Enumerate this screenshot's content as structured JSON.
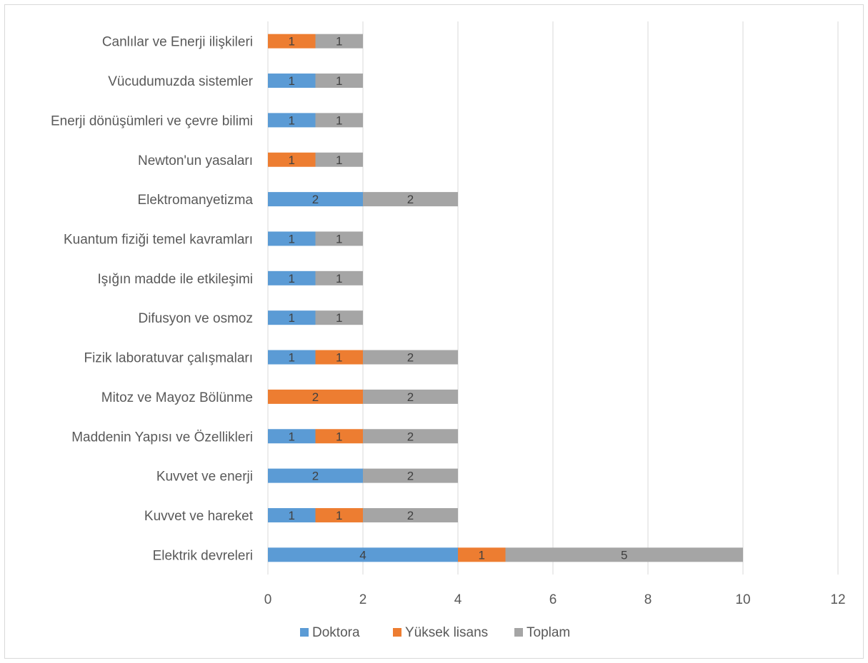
{
  "chart_data": {
    "type": "bar",
    "orientation": "horizontal",
    "stacked": true,
    "categories": [
      "Canlılar ve Enerji ilişkileri",
      "Vücudumuzda sistemler",
      "Enerji dönüşümleri ve çevre bilimi",
      "Newton'un yasaları",
      "Elektromanyetizma",
      "Kuantum fiziği temel kavramları",
      "Işığın madde ile etkileşimi",
      "Difusyon ve osmoz",
      "Fizik laboratuvar çalışmaları",
      "Mitoz ve Mayoz Bölünme",
      "Maddenin Yapısı ve Özellikleri",
      "Kuvvet ve enerji",
      "Kuvvet ve hareket",
      "Elektrik devreleri"
    ],
    "series": [
      {
        "name": "Doktora",
        "color": "#5B9BD5",
        "values": [
          0,
          1,
          1,
          0,
          2,
          1,
          1,
          1,
          1,
          0,
          1,
          2,
          1,
          4
        ]
      },
      {
        "name": "Yüksek lisans",
        "color": "#ED7D31",
        "values": [
          1,
          0,
          0,
          1,
          0,
          0,
          0,
          0,
          1,
          2,
          1,
          0,
          1,
          1
        ]
      },
      {
        "name": "Toplam",
        "color": "#A5A5A5",
        "values": [
          1,
          1,
          1,
          1,
          2,
          1,
          1,
          1,
          2,
          2,
          2,
          2,
          2,
          5
        ]
      }
    ],
    "xlim": [
      0,
      12
    ],
    "xticks": [
      0,
      2,
      4,
      6,
      8,
      10,
      12
    ],
    "grid": true,
    "legend": "bottom",
    "title": "",
    "xlabel": "",
    "ylabel": ""
  }
}
